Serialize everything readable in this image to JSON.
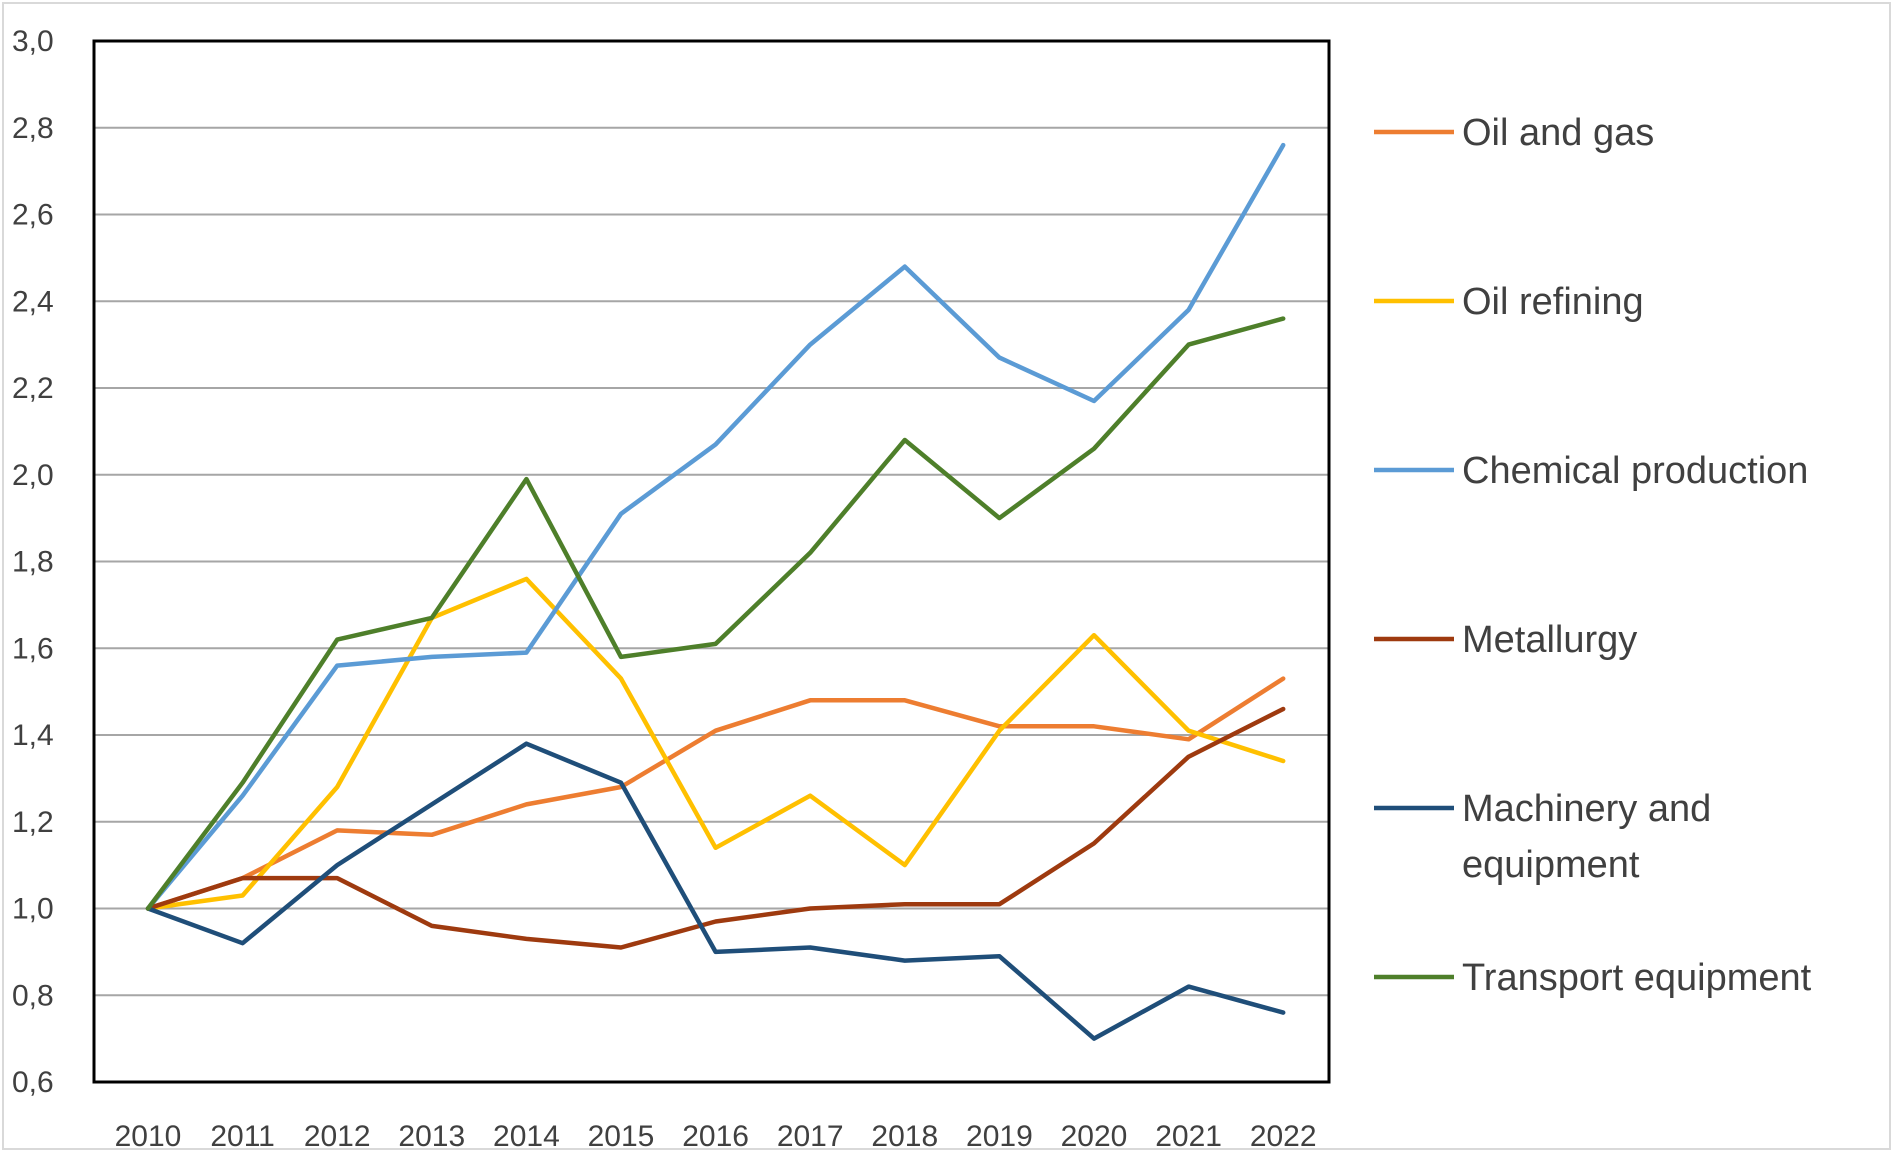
{
  "chart_data": {
    "type": "line",
    "title": "",
    "xlabel": "",
    "ylabel": "",
    "x": [
      "2010",
      "2011",
      "2012",
      "2013",
      "2014",
      "2015",
      "2016",
      "2017",
      "2018",
      "2019",
      "2020",
      "2021",
      "2022"
    ],
    "ylim": [
      0.6,
      3.0
    ],
    "yticks": [
      "0,6",
      "0,8",
      "1,0",
      "1,2",
      "1,4",
      "1,6",
      "1,8",
      "2,0",
      "2,2",
      "2,4",
      "2,6",
      "2,8",
      "3,0"
    ],
    "grid": true,
    "legend_position": "right",
    "series": [
      {
        "name": "Oil and gas",
        "color": "#ED7D31",
        "values": [
          1.0,
          1.07,
          1.18,
          1.17,
          1.24,
          1.28,
          1.41,
          1.48,
          1.48,
          1.42,
          1.42,
          1.39,
          1.53
        ]
      },
      {
        "name": "Oil refining",
        "color": "#FFC000",
        "values": [
          1.0,
          1.03,
          1.28,
          1.67,
          1.76,
          1.53,
          1.14,
          1.26,
          1.1,
          1.41,
          1.63,
          1.41,
          1.34
        ]
      },
      {
        "name": "Chemical production",
        "color": "#5B9BD5",
        "values": [
          1.0,
          1.26,
          1.56,
          1.58,
          1.59,
          1.91,
          2.07,
          2.3,
          2.48,
          2.27,
          2.17,
          2.38,
          2.76
        ]
      },
      {
        "name": "Metallurgy",
        "color": "#9E3A0F",
        "values": [
          1.0,
          1.07,
          1.07,
          0.96,
          0.93,
          0.91,
          0.97,
          1.0,
          1.01,
          1.01,
          1.15,
          1.35,
          1.46
        ]
      },
      {
        "name": "Machinery and equipment",
        "color": "#1F4E79",
        "values": [
          1.0,
          0.92,
          1.1,
          1.24,
          1.38,
          1.29,
          0.9,
          0.91,
          0.88,
          0.89,
          0.7,
          0.82,
          0.76
        ]
      },
      {
        "name": "Transport equipment",
        "color": "#4E7F2A",
        "values": [
          1.0,
          1.29,
          1.62,
          1.67,
          1.99,
          1.58,
          1.61,
          1.82,
          2.08,
          1.9,
          2.06,
          2.3,
          2.36
        ]
      }
    ],
    "legend_lines": [
      [
        "Oil and gas"
      ],
      [
        "Oil refining"
      ],
      [
        "Chemical production"
      ],
      [
        "Metallurgy"
      ],
      [
        "Machinery and",
        "equipment"
      ],
      [
        "Transport equipment"
      ]
    ]
  }
}
